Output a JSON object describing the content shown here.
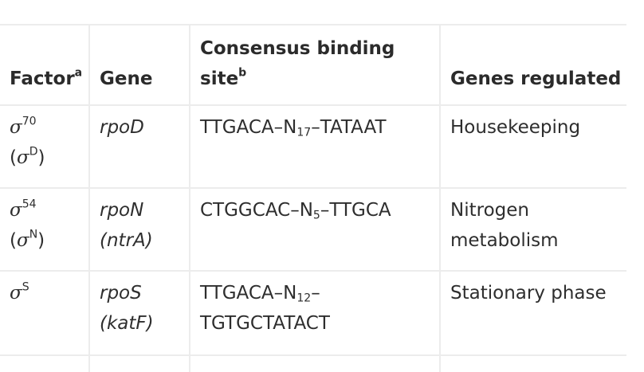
{
  "headers": {
    "factor": "Factor",
    "factor_note": "a",
    "gene": "Gene",
    "consensus_line1": "Consensus binding",
    "consensus_line2": "site",
    "consensus_note": "b",
    "regulated": "Genes regulated"
  },
  "rows": [
    {
      "sigma_symbol": "σ",
      "sigma_sup": "70",
      "alt_open": "(",
      "alt_symbol": "σ",
      "alt_sup": "D",
      "alt_close": ")",
      "gene_line1": "rpoD",
      "gene_line2": "",
      "site_part1": "TTGACA–N",
      "site_sub": "17",
      "site_part2": "–TATAAT",
      "site_line2": "",
      "regulated_line1": "Housekeeping",
      "regulated_line2": ""
    },
    {
      "sigma_symbol": "σ",
      "sigma_sup": "54",
      "alt_open": "(",
      "alt_symbol": "σ",
      "alt_sup": "N",
      "alt_close": ")",
      "gene_line1": "rpoN",
      "gene_line2": "(ntrA)",
      "site_part1": "CTGGCAC–N",
      "site_sub": "5",
      "site_part2": "–TTGCA",
      "site_line2": "",
      "regulated_line1": "Nitrogen",
      "regulated_line2": "metabolism"
    },
    {
      "sigma_symbol": "σ",
      "sigma_sup": "S",
      "alt_open": "",
      "alt_symbol": "",
      "alt_sup": "",
      "alt_close": "",
      "gene_line1": "rpoS",
      "gene_line2": "(katF)",
      "site_part1": "TTGACA–N",
      "site_sub": "12",
      "site_part2": "–",
      "site_line2": "TGTGCTATACT",
      "regulated_line1": "Stationary phase",
      "regulated_line2": ""
    }
  ]
}
